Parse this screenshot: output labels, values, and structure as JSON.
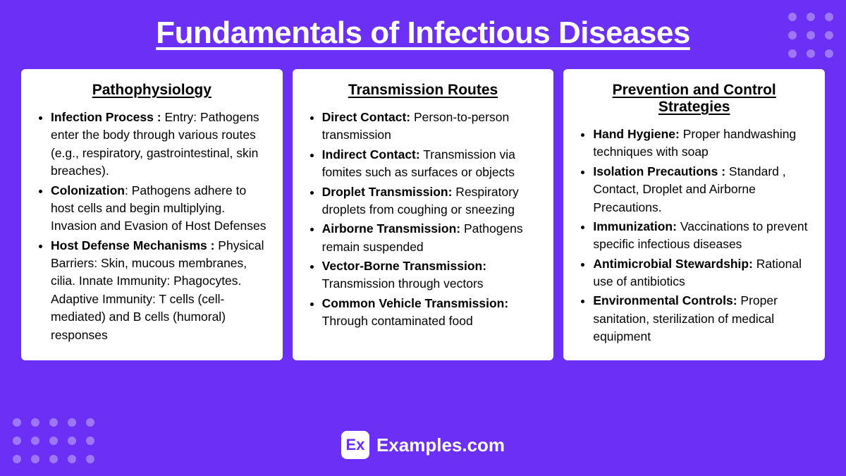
{
  "title": "Fundamentals of Infectious Diseases",
  "cards": [
    {
      "title": "Pathophysiology",
      "items": [
        {
          "bold": "Infection Process : ",
          "text": " Entry: Pathogens enter the body through various routes (e.g., respiratory, gastrointestinal, skin breaches)."
        },
        {
          "bold": "Colonization",
          "text": ": Pathogens adhere to host cells and begin multiplying. Invasion and Evasion of Host Defenses"
        },
        {
          "bold": "Host Defense Mechanisms : ",
          "text": " Physical Barriers: Skin, mucous membranes, cilia. Innate Immunity: Phagocytes. Adaptive Immunity: T cells (cell-mediated) and B cells (humoral) responses"
        }
      ]
    },
    {
      "title": "Transmission Routes",
      "items": [
        {
          "bold": "Direct Contact:",
          "text": " Person-to-person transmission"
        },
        {
          "bold": "Indirect Contact:",
          "text": " Transmission via fomites such as surfaces or objects"
        },
        {
          "bold": "Droplet Transmission:",
          "text": " Respiratory droplets from coughing or sneezing"
        },
        {
          "bold": "Airborne Transmission:",
          "text": " Pathogens remain suspended"
        },
        {
          "bold": "Vector-Borne Transmission:",
          "text": " Transmission through vectors"
        },
        {
          "bold": "Common Vehicle Transmission:",
          "text": " Through contaminated food"
        }
      ]
    },
    {
      "title": "Prevention and Control Strategies",
      "items": [
        {
          "bold": "Hand Hygiene:",
          "text": " Proper handwashing techniques with soap"
        },
        {
          "bold": "Isolation Precautions : ",
          "text": " Standard , Contact, Droplet and Airborne Precautions."
        },
        {
          "bold": "Immunization:",
          "text": " Vaccinations to prevent specific infectious diseases"
        },
        {
          "bold": "Antimicrobial Stewardship:",
          "text": " Rational use of antibiotics"
        },
        {
          "bold": "Environmental Controls:",
          "text": " Proper sanitation, sterilization of medical equipment"
        }
      ]
    }
  ],
  "footer": {
    "logo": "Ex",
    "brand": "Examples.com"
  },
  "colors": {
    "bg": "#6b2ff5",
    "card_bg": "#ffffff",
    "text": "#000000",
    "dot": "rgba(255,255,255,0.35)"
  }
}
